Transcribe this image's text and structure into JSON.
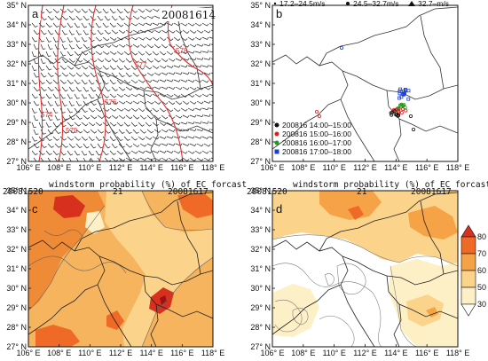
{
  "panel_a": {
    "label": "a",
    "date": "20081614",
    "contour_labels": [
      "574",
      "575",
      "576",
      "577",
      "578"
    ],
    "lat_ticks": [
      "35° N",
      "34° N",
      "33° N",
      "32° N",
      "31° N",
      "30° N",
      "29° N",
      "28° N",
      "27° N"
    ],
    "lon_ticks": [
      "106° E",
      "108° E",
      "110° E",
      "112° E",
      "114° E",
      "116° E",
      "118° E"
    ]
  },
  "panel_b": {
    "label": "b",
    "legend_top": [
      {
        "symbol": "small-circle",
        "text": "17.2–24.5m/s"
      },
      {
        "symbol": "circle",
        "text": "24.5–32.7m/s"
      },
      {
        "symbol": "triangle",
        "text": "32.7–m/s"
      }
    ],
    "legend_times": [
      {
        "color": "#111111",
        "text": "200816 14:00–15:00"
      },
      {
        "color": "#e02020",
        "text": "200816 15:00–16:00"
      },
      {
        "color": "#18a018",
        "text": "200816 16:00–17:00"
      },
      {
        "color": "#1a3fd6",
        "text": "200816 17:00–18:00"
      }
    ],
    "lat_ticks": [
      "35° N",
      "34° N",
      "33° N",
      "32° N",
      "31° N",
      "30° N",
      "29° N",
      "28° N",
      "27° N"
    ],
    "lon_ticks": [
      "106° E",
      "108° E",
      "110° E",
      "112° E",
      "114° E",
      "116° E",
      "118° E"
    ]
  },
  "panel_c": {
    "label": "c",
    "title": "windstorm probability (%) of EC forcast",
    "date_left": "20081520",
    "date_mid": "21",
    "date_right": "20081617",
    "lat_ticks": [
      "35° N",
      "34° N",
      "33° N",
      "32° N",
      "31° N",
      "30° N",
      "29° N",
      "28° N",
      "27° N"
    ],
    "lon_ticks": [
      "106° E",
      "108° E",
      "110° E",
      "112° E",
      "114° E",
      "116° E",
      "118° E"
    ]
  },
  "panel_d": {
    "label": "d",
    "title": "windstorm probability (%) of EC forcast",
    "date_left": "20081520",
    "date_mid": "21",
    "date_right": "20081617",
    "lat_ticks": [
      "35° N",
      "34° N",
      "33° N",
      "32° N",
      "31° N",
      "30° N",
      "29° N",
      "28° N",
      "27° N"
    ],
    "lon_ticks": [
      "106° E",
      "108° E",
      "110° E",
      "112° E",
      "114° E",
      "116° E",
      "118° E"
    ]
  },
  "colorbar": {
    "labels": [
      "80",
      "70",
      "60",
      "50",
      "30"
    ],
    "colors": [
      "#d7301f",
      "#ef6a26",
      "#f6a347",
      "#fcd38b",
      "#fdf0c6",
      "#ffffff"
    ]
  }
}
